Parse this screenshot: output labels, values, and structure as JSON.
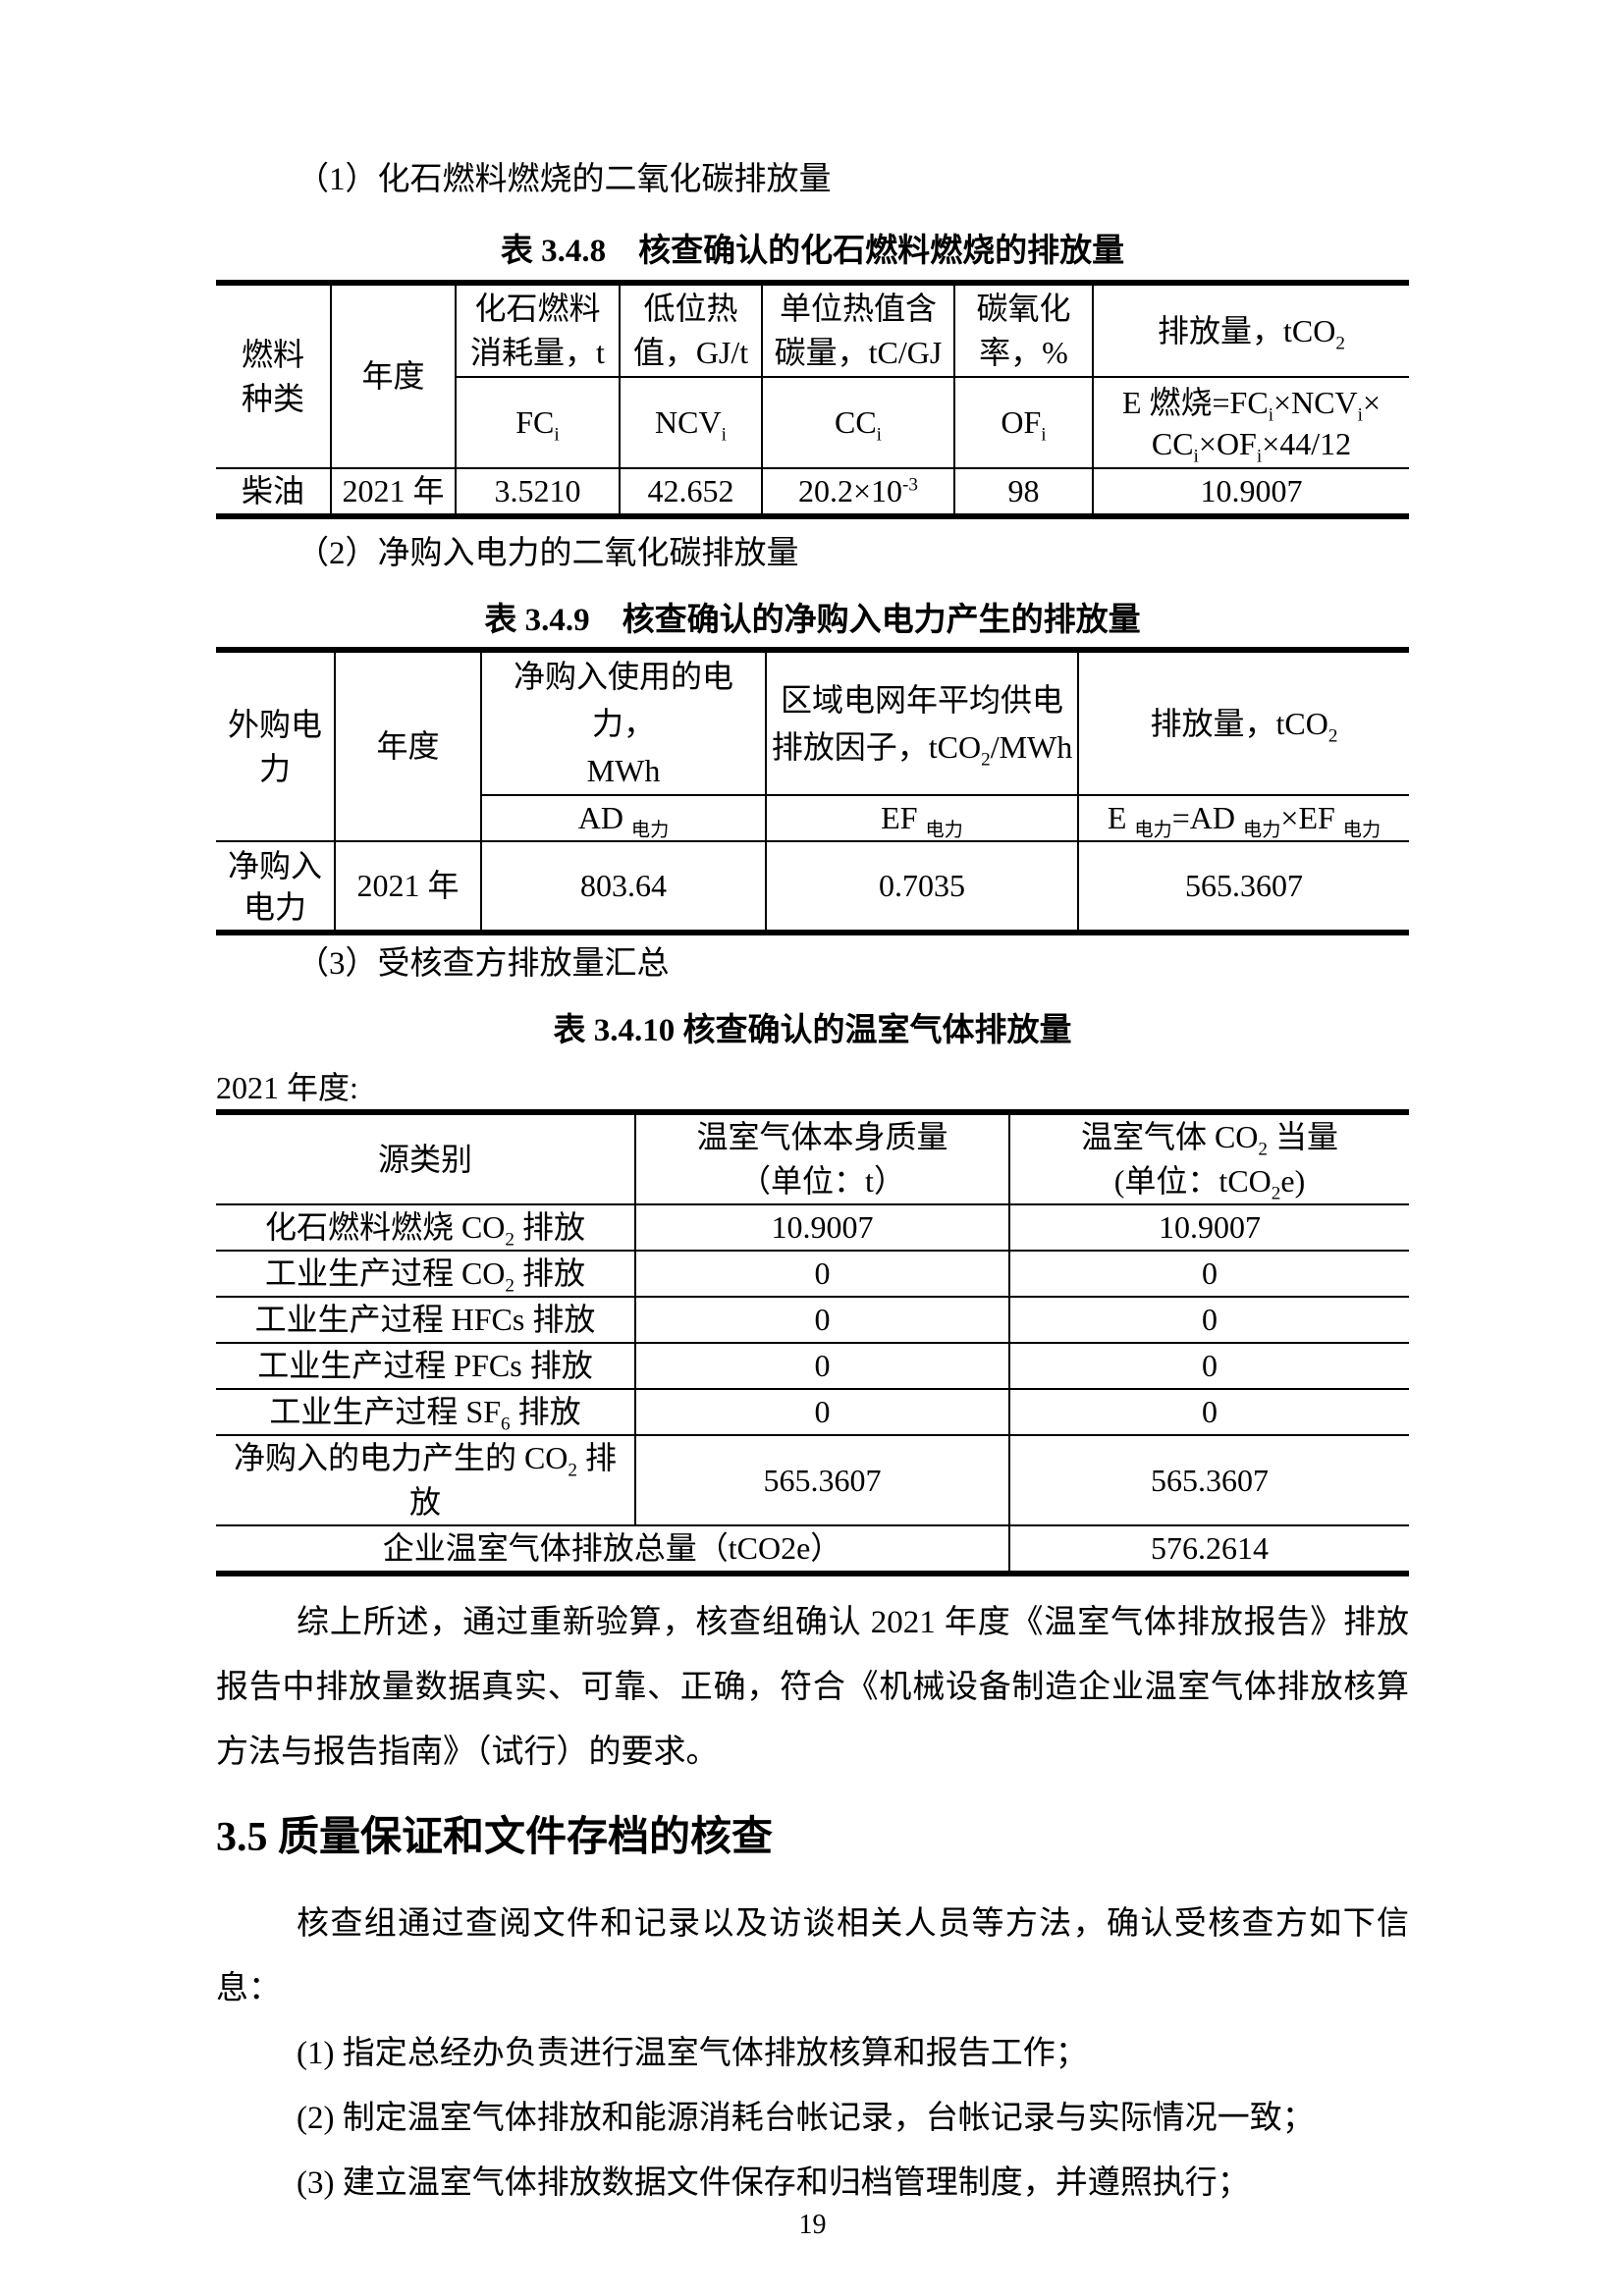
{
  "headings": {
    "item1": "（1）化石燃料燃烧的二氧化碳排放量",
    "item2": "（2）净购入电力的二氧化碳排放量",
    "item3": "（3）受核查方排放量汇总",
    "section_35": "3.5 质量保证和文件存档的核查"
  },
  "table_348": {
    "title": "表 3.4.8　核查确认的化石燃料燃烧的排放量",
    "col_fuel": "燃料<br>种类",
    "col_year": "年度",
    "col_fc_label": "化石燃料<br>消耗量，t",
    "col_ncv_label": "低位热<br>值，GJ/t",
    "col_cc_label": "单位热值含<br>碳量，tC/GJ",
    "col_of_label": "碳氧化<br>率，%",
    "col_e_label": "排放量，tCO<sub>2</sub>",
    "sym_fc": "FC<sub>i</sub>",
    "sym_ncv": "NCV<sub>i</sub>",
    "sym_cc": "CC<sub>i</sub>",
    "sym_of": "OF<sub>i</sub>",
    "formula": "E 燃烧=FC<sub>i</sub>×NCV<sub>i</sub>×<br>CC<sub>i</sub>×OF<sub>i</sub>×44/12",
    "row": {
      "fuel": "柴油",
      "year": "2021 年",
      "fc": "3.5210",
      "ncv": "42.652",
      "cc": "20.2×10<sup>-3</sup>",
      "of": "98",
      "e": "10.9007"
    }
  },
  "table_349": {
    "title": "表 3.4.9　核查确认的净购入电力产生的排放量",
    "col_source": "外购电<br>力",
    "col_year": "年度",
    "col_ad_label": "净购入使用的电力，<br>MWh",
    "col_ef_label": "区域电网年平均供电<br>排放因子，tCO<sub>2</sub>/MWh",
    "col_e_label": "排放量，tCO<sub>2</sub>",
    "sym_ad": "AD <sub>电力</sub>",
    "sym_ef": "EF <sub>电力</sub>",
    "formula": "E <sub>电力</sub>=AD <sub>电力</sub>×EF <sub>电力</sub>",
    "row": {
      "source": "净购入<br>电力",
      "year": "2021 年",
      "ad": "803.64",
      "ef": "0.7035",
      "e": "565.3607"
    }
  },
  "table_3410": {
    "title": "表 3.4.10 核查确认的温室气体排放量",
    "year_label": "2021 年度:",
    "col_source": "源类别",
    "col_mass": "温室气体本身质量<br>（单位：t）",
    "col_co2e": "温室气体 CO<sub>2</sub> 当量<br>(单位：tCO<sub>2</sub>e)",
    "rows": [
      {
        "label": "化石燃料燃烧 CO<sub>2</sub> 排放",
        "mass": "10.9007",
        "co2e": "10.9007"
      },
      {
        "label": "工业生产过程 CO<sub>2</sub> 排放",
        "mass": "0",
        "co2e": "0"
      },
      {
        "label": "工业生产过程 HFCs 排放",
        "mass": "0",
        "co2e": "0"
      },
      {
        "label": "工业生产过程 PFCs 排放",
        "mass": "0",
        "co2e": "0"
      },
      {
        "label": "工业生产过程 SF<sub>6</sub> 排放",
        "mass": "0",
        "co2e": "0"
      },
      {
        "label": "净购入的电力产生的 CO<sub>2</sub> 排放",
        "mass": "565.3607",
        "co2e": "565.3607"
      }
    ],
    "total_label": "企业温室气体排放总量（tCO2e）",
    "total_value": "576.2614"
  },
  "paragraphs": {
    "summary": "综上所述，通过重新验算，核查组确认 2021 年度《温室气体排放报告》排放报告中排放量数据真实、可靠、正确，符合《机械设备制造企业温室气体排放核算方法与报告指南》（试行）的要求。",
    "qa_intro": "核查组通过查阅文件和记录以及访谈相关人员等方法，确认受核查方如下信息：",
    "qa_item1": "(1) 指定总经办负责进行温室气体排放核算和报告工作；",
    "qa_item2": "(2) 制定温室气体排放和能源消耗台帐记录，台帐记录与实际情况一致；",
    "qa_item3": "(3) 建立温室气体排放数据文件保存和归档管理制度，并遵照执行；"
  },
  "footer": {
    "page_number": "19"
  }
}
